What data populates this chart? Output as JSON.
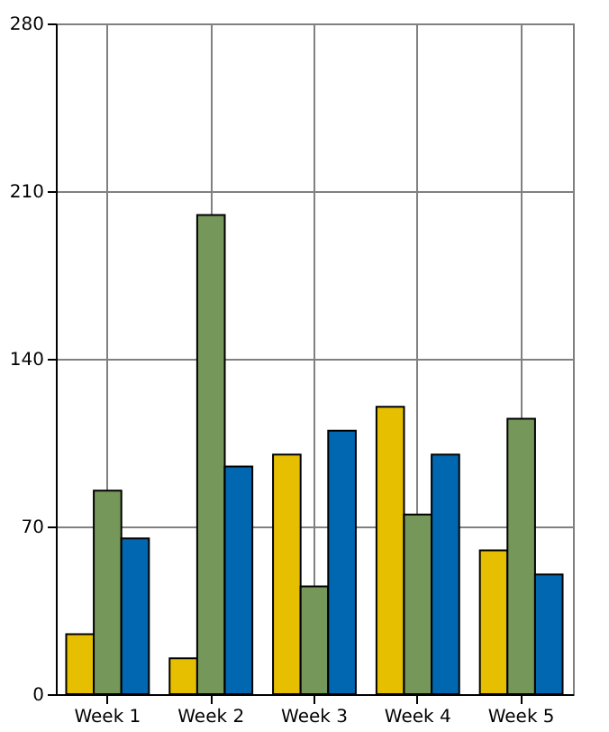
{
  "chart_data": {
    "type": "bar",
    "categories": [
      "Week 1",
      "Week 2",
      "Week 3",
      "Week 4",
      "Week 5"
    ],
    "series": [
      {
        "color": "#e6c000",
        "values": [
          25,
          15,
          100,
          120,
          60
        ]
      },
      {
        "color": "#76975a",
        "values": [
          85,
          200,
          45,
          75,
          115
        ]
      },
      {
        "color": "#0067b0",
        "values": [
          65,
          95,
          110,
          100,
          50
        ]
      }
    ],
    "ylim": [
      0,
      280
    ],
    "yticks": [
      0,
      70,
      140,
      210,
      280
    ],
    "grid": true,
    "legend": false
  }
}
